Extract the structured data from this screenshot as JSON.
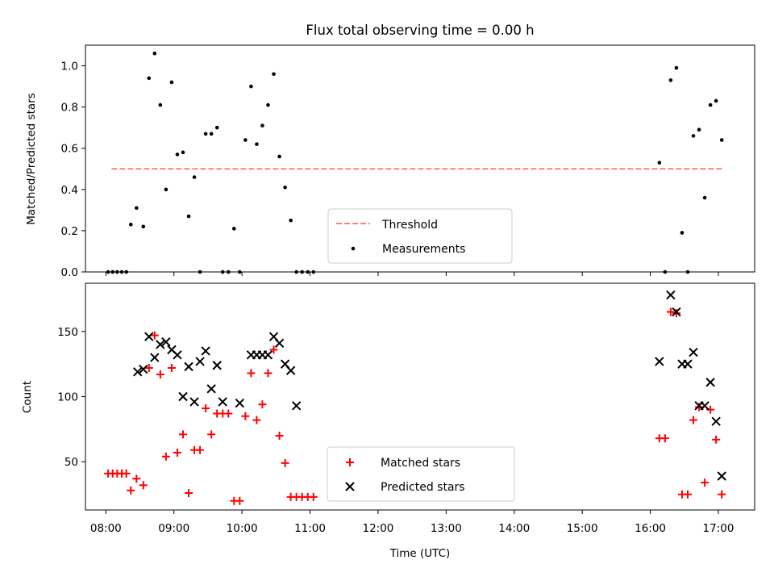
{
  "title": "Flux total observing time = 0.00 h",
  "chart_data": [
    {
      "type": "scatter",
      "title": "Flux total observing time = 0.00 h",
      "xlabel": "",
      "ylabel": "Matched/Predicted stars",
      "xlim": [
        "07:42",
        "17:32"
      ],
      "ylim": [
        0,
        1.1
      ],
      "yticks": [
        "0.0",
        "0.2",
        "0.4",
        "0.6",
        "0.8",
        "1.0"
      ],
      "legend": "lower-center",
      "series": [
        {
          "name": "Threshold",
          "style": "dashed-line",
          "color": "#ff7f7f",
          "x": [
            "08:05",
            "17:04"
          ],
          "y": [
            0.5,
            0.5
          ]
        },
        {
          "name": "Measurements",
          "style": "dot",
          "color": "#000000",
          "x": [
            "08:02",
            "08:06",
            "08:10",
            "08:14",
            "08:18",
            "08:22",
            "08:27",
            "08:33",
            "08:38",
            "08:43",
            "08:48",
            "08:53",
            "08:58",
            "09:03",
            "09:08",
            "09:13",
            "09:18",
            "09:23",
            "09:28",
            "09:33",
            "09:38",
            "09:43",
            "09:48",
            "09:53",
            "09:58",
            "10:03",
            "10:08",
            "10:13",
            "10:18",
            "10:23",
            "10:28",
            "10:33",
            "10:38",
            "10:43",
            "10:48",
            "10:53",
            "10:58",
            "11:03",
            "16:08",
            "16:13",
            "16:18",
            "16:23",
            "16:28",
            "16:33",
            "16:38",
            "16:43",
            "16:48",
            "16:53",
            "16:58",
            "17:03"
          ],
          "y": [
            0,
            0,
            0,
            0,
            0,
            0.23,
            0.31,
            0.22,
            0.94,
            1.06,
            0.81,
            0.4,
            0.92,
            0.57,
            0.58,
            0.27,
            0.46,
            0,
            0.67,
            0.67,
            0.7,
            0,
            0,
            0.21,
            0,
            0.64,
            0.9,
            0.62,
            0.71,
            0.81,
            0.96,
            0.56,
            0.41,
            0.25,
            0,
            0,
            0,
            0,
            0.53,
            0,
            0.93,
            0.99,
            0.19,
            0,
            0.66,
            0.69,
            0.36,
            0.81,
            0.83,
            0.64
          ]
        }
      ]
    },
    {
      "type": "scatter",
      "title": "",
      "xlabel": "Time (UTC)",
      "ylabel": "Count",
      "xlim": [
        "07:42",
        "17:32"
      ],
      "ylim": [
        13,
        187
      ],
      "yticks": [
        "50",
        "100",
        "150"
      ],
      "xticks": [
        "08:00",
        "09:00",
        "10:00",
        "11:00",
        "12:00",
        "13:00",
        "14:00",
        "15:00",
        "16:00",
        "17:00"
      ],
      "legend": "lower-center",
      "series": [
        {
          "name": "Matched stars",
          "marker": "plus",
          "color": "#ff0000",
          "x": [
            "08:02",
            "08:06",
            "08:10",
            "08:14",
            "08:18",
            "08:22",
            "08:27",
            "08:33",
            "08:38",
            "08:43",
            "08:48",
            "08:53",
            "08:58",
            "09:03",
            "09:08",
            "09:13",
            "09:18",
            "09:23",
            "09:28",
            "09:33",
            "09:38",
            "09:43",
            "09:48",
            "09:53",
            "09:58",
            "10:03",
            "10:08",
            "10:13",
            "10:18",
            "10:23",
            "10:28",
            "10:33",
            "10:38",
            "10:43",
            "10:48",
            "10:53",
            "10:58",
            "11:03",
            "16:08",
            "16:13",
            "16:18",
            "16:23",
            "16:28",
            "16:33",
            "16:38",
            "16:43",
            "16:48",
            "16:53",
            "16:58",
            "17:03"
          ],
          "y": [
            41,
            41,
            41,
            41,
            41,
            28,
            37,
            32,
            122,
            147,
            117,
            54,
            122,
            57,
            71,
            26,
            59,
            59,
            91,
            71,
            87,
            87,
            87,
            20,
            20,
            85,
            118,
            82,
            94,
            118,
            136,
            70,
            49,
            23,
            23,
            23,
            23,
            23,
            68,
            68,
            165,
            164,
            25,
            25,
            82,
            92,
            34,
            90,
            67,
            25
          ]
        },
        {
          "name": "Predicted stars",
          "marker": "x",
          "color": "#000000",
          "x": [
            "08:28",
            "08:33",
            "08:38",
            "08:43",
            "08:48",
            "08:53",
            "08:58",
            "09:03",
            "09:08",
            "09:13",
            "09:18",
            "09:23",
            "09:28",
            "09:33",
            "09:38",
            "09:43",
            "09:58",
            "10:08",
            "10:13",
            "10:18",
            "10:23",
            "10:28",
            "10:33",
            "10:38",
            "10:43",
            "10:48",
            "16:08",
            "16:18",
            "16:23",
            "16:28",
            "16:33",
            "16:38",
            "16:43",
            "16:48",
            "16:53",
            "16:58",
            "17:03"
          ],
          "y": [
            119,
            121,
            146,
            130,
            140,
            142,
            136,
            132,
            100,
            123,
            96,
            127,
            135,
            106,
            124,
            96,
            95,
            132,
            132,
            132,
            132,
            146,
            141,
            125,
            120,
            93,
            127,
            178,
            165,
            125,
            125,
            134,
            93,
            93,
            111,
            81,
            39
          ]
        }
      ]
    }
  ]
}
